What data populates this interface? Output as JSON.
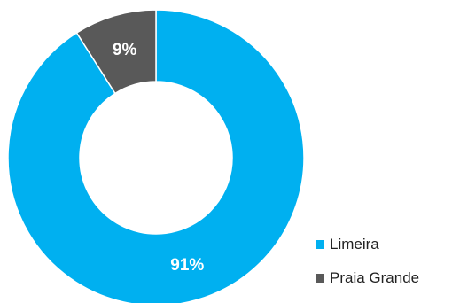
{
  "chart_data": {
    "type": "pie",
    "title": "",
    "categories": [
      "Limeira",
      "Praia Grande"
    ],
    "values": [
      91,
      9
    ],
    "labels": [
      "91%",
      "9%"
    ],
    "colors": [
      "#00B0F0",
      "#595959"
    ],
    "label_colors": [
      "#ffffff",
      "#ffffff"
    ],
    "legend_position": "bottom-right"
  },
  "legend": [
    {
      "label": "Limeira",
      "color": "#00B0F0"
    },
    {
      "label": "Praia Grande",
      "color": "#595959"
    }
  ]
}
